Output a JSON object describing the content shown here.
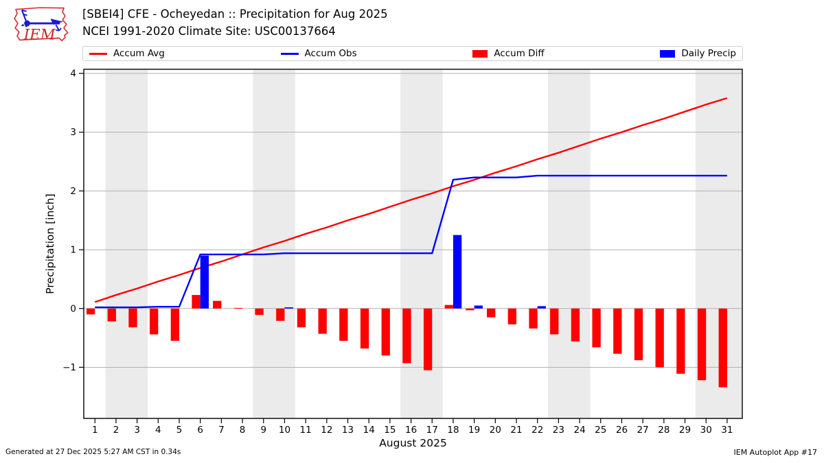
{
  "header": {
    "title_line1": "[SBEI4] CFE - Ocheyedan :: Precipitation for Aug 2025",
    "title_line2": "NCEI 1991-2020 Climate Site: USC00137664",
    "logo_text": "IEM"
  },
  "legend": {
    "items": [
      {
        "label": "Accum Avg",
        "swatch": "line",
        "color": "#ff0000"
      },
      {
        "label": "Accum Obs",
        "swatch": "line",
        "color": "#0000ff"
      },
      {
        "label": "Accum Diff",
        "swatch": "rect",
        "color": "#ff0000"
      },
      {
        "label": "Daily Precip",
        "swatch": "rect",
        "color": "#0000ff"
      }
    ]
  },
  "footer": {
    "left": "Generated at 27 Dec 2025 5:27 AM CST in 0.34s",
    "right": "IEM Autoplot App #17"
  },
  "chart_data": {
    "type": "bar+line",
    "title": "[SBEI4] CFE - Ocheyedan :: Precipitation for Aug 2025",
    "subtitle": "NCEI 1991-2020 Climate Site: USC00137664",
    "xlabel": "August 2025",
    "ylabel": "Precipitation [inch]",
    "xlim": [
      0.47,
      31.72
    ],
    "ylim": [
      -1.87,
      4.07
    ],
    "yticks": [
      -1,
      0,
      1,
      2,
      3,
      4
    ],
    "grid": "horizontal",
    "legend_position": "top",
    "days": [
      1,
      2,
      3,
      4,
      5,
      6,
      7,
      8,
      9,
      10,
      11,
      12,
      13,
      14,
      15,
      16,
      17,
      18,
      19,
      20,
      21,
      22,
      23,
      24,
      25,
      26,
      27,
      28,
      29,
      30,
      31
    ],
    "series": [
      {
        "name": "Accum Avg",
        "type": "line",
        "color": "#ff0000",
        "values": [
          0.11,
          0.23,
          0.34,
          0.46,
          0.57,
          0.69,
          0.8,
          0.92,
          1.04,
          1.15,
          1.27,
          1.38,
          1.5,
          1.61,
          1.73,
          1.85,
          1.96,
          2.08,
          2.19,
          2.31,
          2.42,
          2.54,
          2.65,
          2.77,
          2.89,
          3.0,
          3.12,
          3.23,
          3.35,
          3.47,
          3.58
        ]
      },
      {
        "name": "Accum Obs",
        "type": "line",
        "color": "#0000ff",
        "values": [
          0.02,
          0.02,
          0.02,
          0.03,
          0.03,
          0.92,
          0.92,
          0.92,
          0.92,
          0.94,
          0.94,
          0.94,
          0.94,
          0.94,
          0.94,
          0.94,
          0.94,
          2.19,
          2.23,
          2.23,
          2.23,
          2.26,
          2.26,
          2.26,
          2.26,
          2.26,
          2.26,
          2.26,
          2.26,
          2.26,
          2.26
        ]
      },
      {
        "name": "Accum Diff",
        "type": "bar",
        "color": "#ff0000",
        "values": [
          -0.1,
          -0.22,
          -0.32,
          -0.44,
          -0.55,
          0.23,
          0.13,
          0.01,
          -0.11,
          -0.21,
          -0.32,
          -0.43,
          -0.55,
          -0.68,
          -0.8,
          -0.93,
          -1.05,
          0.06,
          -0.03,
          -0.15,
          -0.27,
          -0.34,
          -0.44,
          -0.56,
          -0.66,
          -0.77,
          -0.88,
          -1.0,
          -1.11,
          -1.22,
          -1.34
        ]
      },
      {
        "name": "Daily Precip",
        "type": "bar",
        "color": "#0000ff",
        "values": [
          0,
          0,
          0,
          0,
          0,
          0.9,
          0,
          0,
          0,
          0.02,
          0,
          0,
          0,
          0,
          0,
          0,
          0,
          1.25,
          0.05,
          0,
          0,
          0.04,
          0,
          0,
          0,
          0,
          0,
          0,
          0,
          0,
          0
        ]
      }
    ],
    "weekend_bands": [
      [
        1.5,
        3.5
      ],
      [
        8.5,
        10.5
      ],
      [
        15.5,
        17.5
      ],
      [
        22.5,
        24.5
      ],
      [
        29.5,
        31.72
      ]
    ],
    "colors": {
      "red": "#ff0000",
      "blue": "#0000ff",
      "grid": "#b0b0b0",
      "band": "#ebebeb",
      "spine": "#000000"
    }
  }
}
